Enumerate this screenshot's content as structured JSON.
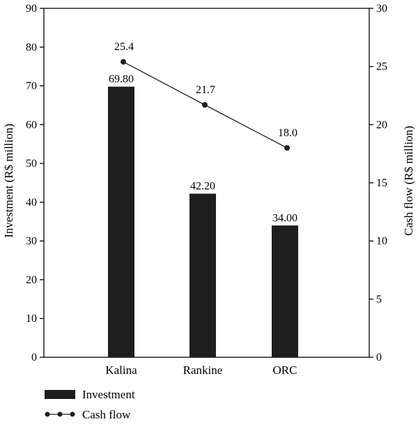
{
  "chart_data": {
    "type": "bar",
    "categories": [
      "Kalina",
      "Rankine",
      "ORC"
    ],
    "series": [
      {
        "name": "Investment",
        "type": "bar",
        "axis": "left",
        "values": [
          69.8,
          42.2,
          34.0
        ],
        "labels": [
          "69.80",
          "42.20",
          "34.00"
        ],
        "color": "#1e1e1e"
      },
      {
        "name": "Cash flow",
        "type": "line",
        "axis": "right",
        "values": [
          25.4,
          21.7,
          18.0
        ],
        "labels": [
          "25.4",
          "21.7",
          "18.0"
        ],
        "color": "#1e1e1e"
      }
    ],
    "y_left": {
      "label": "Investment (R$ million)",
      "lim": [
        0,
        90
      ],
      "ticks": [
        "0",
        "10",
        "20",
        "30",
        "40",
        "50",
        "60",
        "70",
        "80",
        "90"
      ]
    },
    "y_right": {
      "label": "Cash flow (R$ million)",
      "lim": [
        0,
        30
      ],
      "ticks": [
        "0",
        "5",
        "10",
        "15",
        "20",
        "25",
        "30"
      ]
    },
    "grid": false,
    "legend": "bottom-left"
  }
}
